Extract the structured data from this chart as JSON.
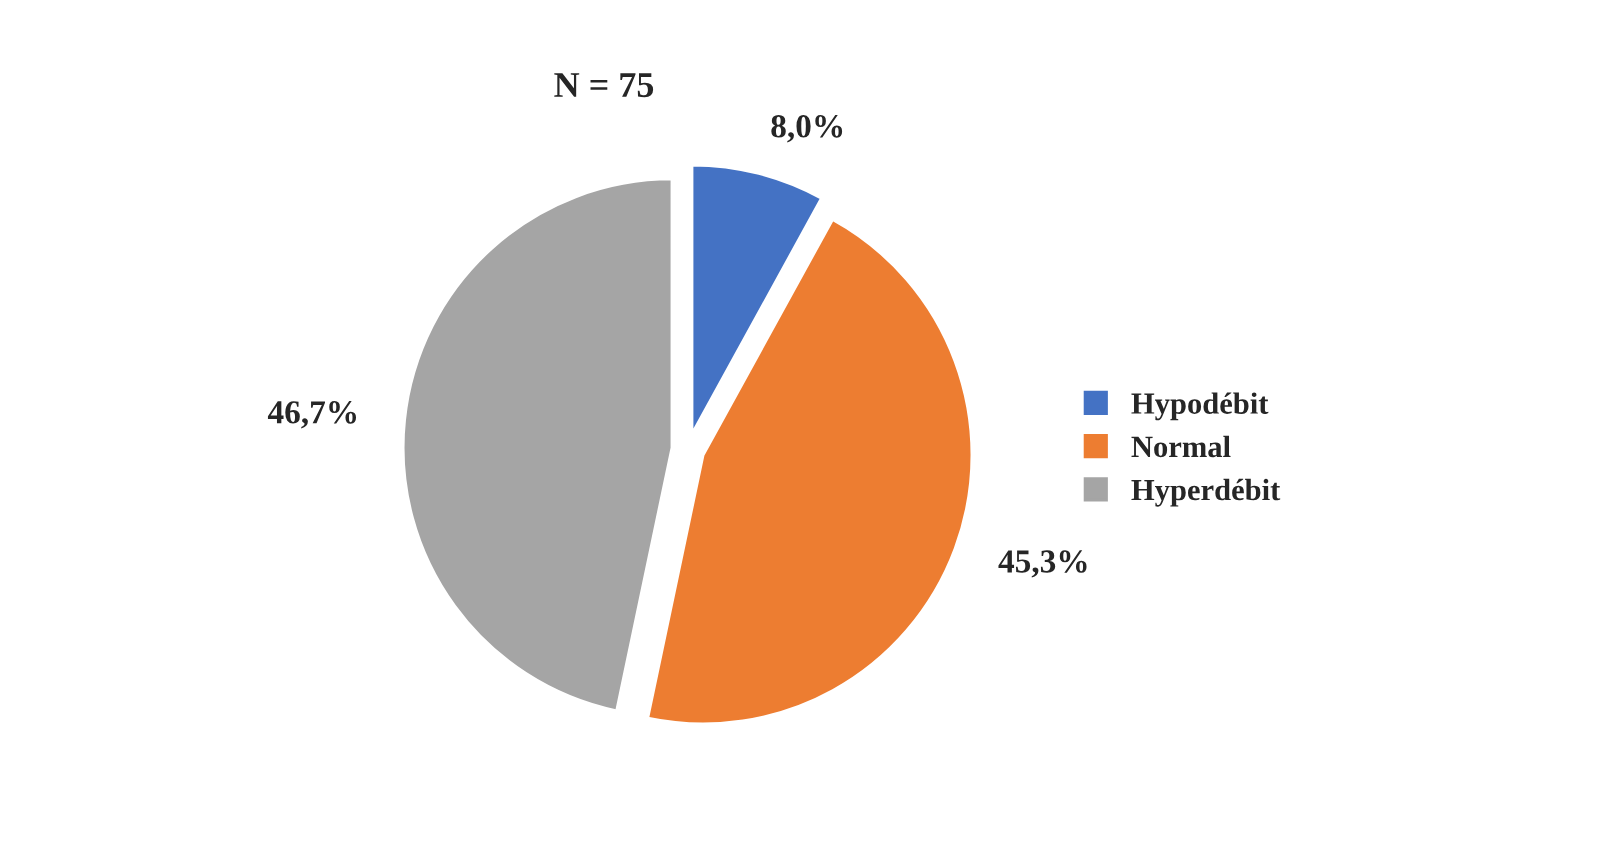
{
  "chart_data": {
    "type": "pie",
    "title": "N = 75",
    "categories": [
      "Hypodébit",
      "Normal",
      "Hyperdébit"
    ],
    "values": [
      8.0,
      45.3,
      46.7
    ],
    "value_labels": [
      "8,0%",
      "45,3%",
      "46,7%"
    ],
    "colors": [
      "#4472c4",
      "#ed7d31",
      "#a5a5a5"
    ],
    "legend": "right"
  }
}
